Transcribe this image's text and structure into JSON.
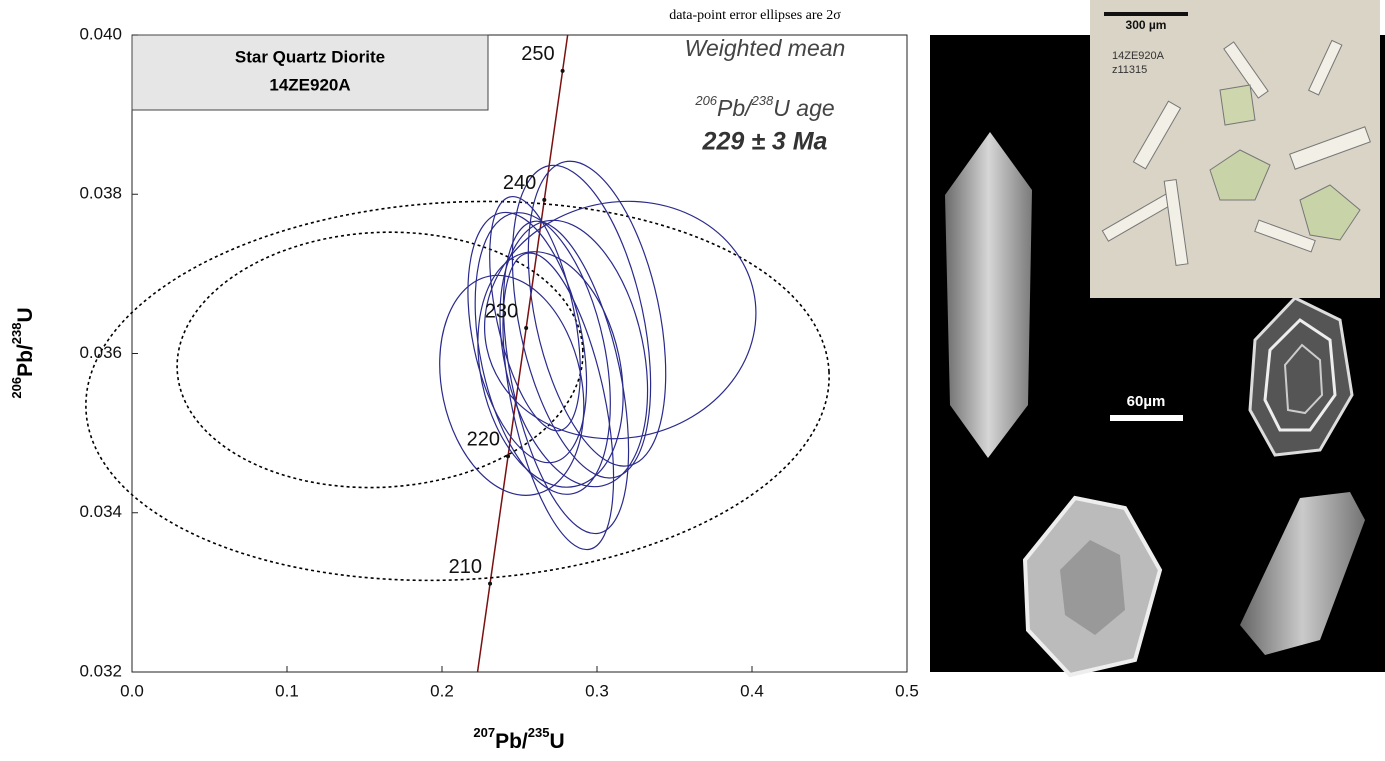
{
  "chart_data": {
    "type": "concordia",
    "note": "data-point error ellipses are 2σ",
    "x_label": [
      "207",
      "Pb/",
      "235",
      "U"
    ],
    "y_label": [
      "206",
      "Pb/",
      "238",
      "U"
    ],
    "box_title": [
      "Star Quartz Diorite",
      "14ZE920A"
    ],
    "age_annotation": [
      "Weighted mean",
      "206",
      "Pb/",
      "238",
      "U age",
      "229 ± 3 Ma"
    ],
    "xlim": [
      0,
      0.5
    ],
    "ylim": [
      0.032,
      0.04
    ],
    "xticks": [
      {
        "value": 0,
        "label": "0.0"
      },
      0.1,
      0.2,
      0.3,
      0.4,
      0.5
    ],
    "yticks": [
      0.032,
      0.034,
      0.036,
      0.038,
      {
        "value": 0.04,
        "label": "0.040"
      }
    ],
    "concordia": {
      "color": "#7a1010",
      "ages": [
        210,
        220,
        230,
        240,
        250
      ],
      "x": [
        0.231,
        0.2426,
        0.2543,
        0.266,
        0.2778
      ],
      "y": [
        0.03311,
        0.03471,
        0.03632,
        0.03793,
        0.03955
      ]
    },
    "ellipses": {
      "color": "#2a2a8c",
      "x": [
        0.29,
        0.3,
        0.265,
        0.255,
        0.27,
        0.28,
        0.245,
        0.275,
        0.26,
        0.285,
        0.315
      ],
      "y": [
        0.0364,
        0.0365,
        0.036,
        0.0362,
        0.0358,
        0.0357,
        0.0356,
        0.0354,
        0.0365,
        0.036,
        0.03642
      ],
      "x_err": [
        0.04,
        0.04,
        0.04,
        0.035,
        0.045,
        0.035,
        0.045,
        0.03,
        0.025,
        0.045,
        0.088
      ],
      "y_err": [
        0.002,
        0.00195,
        0.0018,
        0.0016,
        0.0015,
        0.002,
        0.0014,
        0.0019,
        0.0015,
        0.0017,
        0.00148
      ]
    },
    "excluded_ellipses": {
      "color": "#000000",
      "x": [
        0.21,
        0.16
      ],
      "y": [
        0.03553,
        0.03592
      ],
      "x_err": [
        0.24,
        0.131
      ],
      "y_err": [
        0.00237,
        0.0016
      ]
    }
  },
  "image_panel": {
    "inset_scale": "300 µm",
    "inset_sample": "14ZE920A",
    "inset_grain": "z11315",
    "scale_bar": "60µm"
  }
}
